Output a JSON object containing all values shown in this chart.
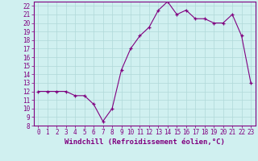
{
  "x": [
    0,
    1,
    2,
    3,
    4,
    5,
    6,
    7,
    8,
    9,
    10,
    11,
    12,
    13,
    14,
    15,
    16,
    17,
    18,
    19,
    20,
    21,
    22,
    23
  ],
  "y": [
    12,
    12,
    12,
    12,
    11.5,
    11.5,
    10.5,
    8.5,
    10,
    14.5,
    17,
    18.5,
    19.5,
    21.5,
    22.5,
    21,
    21.5,
    20.5,
    20.5,
    20,
    20,
    21,
    18.5,
    13
  ],
  "line_color": "#800080",
  "marker": "+",
  "background_color": "#d0f0f0",
  "grid_color": "#b0d8d8",
  "xlabel": "Windchill (Refroidissement éolien,°C)",
  "xlim_min": -0.5,
  "xlim_max": 23.5,
  "ylim_min": 8,
  "ylim_max": 22.5,
  "yticks": [
    8,
    9,
    10,
    11,
    12,
    13,
    14,
    15,
    16,
    17,
    18,
    19,
    20,
    21,
    22
  ],
  "xticks": [
    0,
    1,
    2,
    3,
    4,
    5,
    6,
    7,
    8,
    9,
    10,
    11,
    12,
    13,
    14,
    15,
    16,
    17,
    18,
    19,
    20,
    21,
    22,
    23
  ],
  "tick_color": "#800080",
  "label_color": "#800080",
  "tick_fontsize": 5.5,
  "xlabel_fontsize": 6.5
}
